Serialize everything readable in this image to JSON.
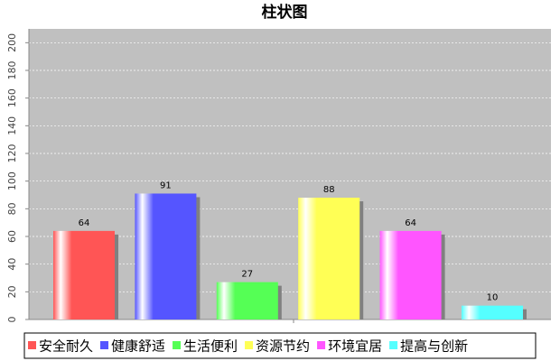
{
  "chart_data": {
    "type": "bar",
    "title": "柱状图",
    "categories": [
      null
    ],
    "series": [
      {
        "name": "安全耐久",
        "color": "#ff5555",
        "values": [
          64
        ]
      },
      {
        "name": "健康舒适",
        "color": "#5555ff",
        "values": [
          91
        ]
      },
      {
        "name": "生活便利",
        "color": "#55ff55",
        "values": [
          27
        ]
      },
      {
        "name": "资源节约",
        "color": "#ffff55",
        "values": [
          88
        ]
      },
      {
        "name": "环境宜居",
        "color": "#ff55ff",
        "values": [
          64
        ]
      },
      {
        "name": "提高与创新",
        "color": "#55ffff",
        "values": [
          10
        ]
      }
    ],
    "ylim": [
      0,
      210
    ],
    "yticks": [
      0,
      20,
      40,
      60,
      80,
      100,
      120,
      140,
      160,
      180,
      200
    ],
    "grid": true
  }
}
